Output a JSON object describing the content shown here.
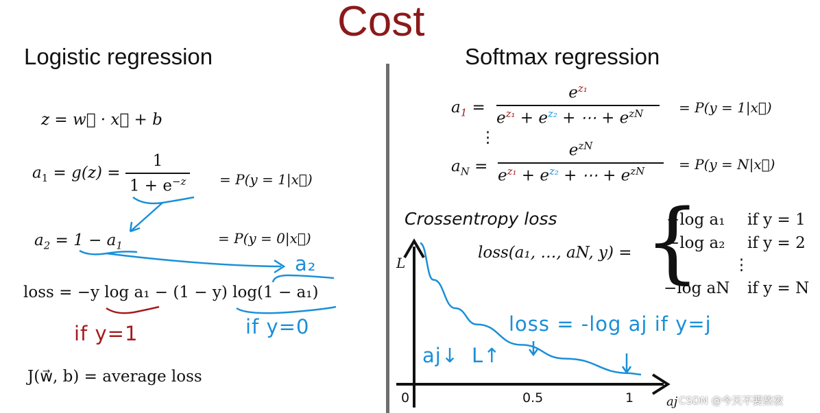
{
  "title": "Cost",
  "left": {
    "heading": "Logistic regression",
    "z_eq": "z = w⃗ · x⃗ + b",
    "a1_eq_prefix": "a",
    "a1_eq_mid": " = g(z) =",
    "a1_frac_num": "1",
    "a1_frac_den": "1 + e",
    "a1_frac_den_sup": "−z",
    "a1_prob": "= P(y = 1|x⃗)",
    "a2_eq": " = 1 − a",
    "a2_prob": "= P(y = 0|x⃗)",
    "loss_eq": "loss = −y log a₁ − (1 − y) log(1 − a₁)",
    "cost_eq": "J(w⃗, b) = average loss",
    "annot_a2": "a₂",
    "annot_if_y1": "if y=1",
    "annot_if_y0": "if y=0"
  },
  "right": {
    "heading": "Softmax regression",
    "a1_lhs": "a",
    "a1_num": "e",
    "a1_num_sup": "z₁",
    "den_parts": [
      "e",
      "z₁",
      " + e",
      "z₂",
      " + ⋯ + e",
      "zN"
    ],
    "a1_prob": "= P(y = 1|x⃗)",
    "vdots": "⋮",
    "aN_num_sup": "zN",
    "aN_prob": "= P(y = N|x⃗)",
    "crossentropy_label": "Crossentropy loss",
    "loss_lhs": "loss(a₁, …, aN, y) =",
    "cases": [
      {
        "expr": "−log a₁",
        "cond": "if y = 1"
      },
      {
        "expr": "−log a₂",
        "cond": "if y = 2"
      },
      {
        "expr": "⋮",
        "cond": ""
      },
      {
        "expr": "−log aN",
        "cond": "if y = N"
      }
    ],
    "annot_loss": "loss = -log aj  if y=j",
    "annot_aj_down": "aj↓",
    "annot_L_up": "L↑"
  },
  "chart_data": {
    "type": "line",
    "title": "",
    "xlabel": "aj",
    "ylabel": "L",
    "x_ticks": [
      "0",
      "0.5",
      "1"
    ],
    "xlim": [
      0,
      1
    ],
    "curve": "L = -log(aj)",
    "series": [
      {
        "x": [
          0.04,
          0.1,
          0.2,
          0.3,
          0.5,
          0.7,
          1.0
        ],
        "y": [
          3.2,
          2.3,
          1.6,
          1.2,
          0.7,
          0.36,
          0.0
        ]
      }
    ]
  },
  "watermark": "CSDN @今天不要熬夜",
  "colors": {
    "title": "#8b1a1a",
    "annotation": "#1a8fd8",
    "red": "#a31b1b"
  }
}
